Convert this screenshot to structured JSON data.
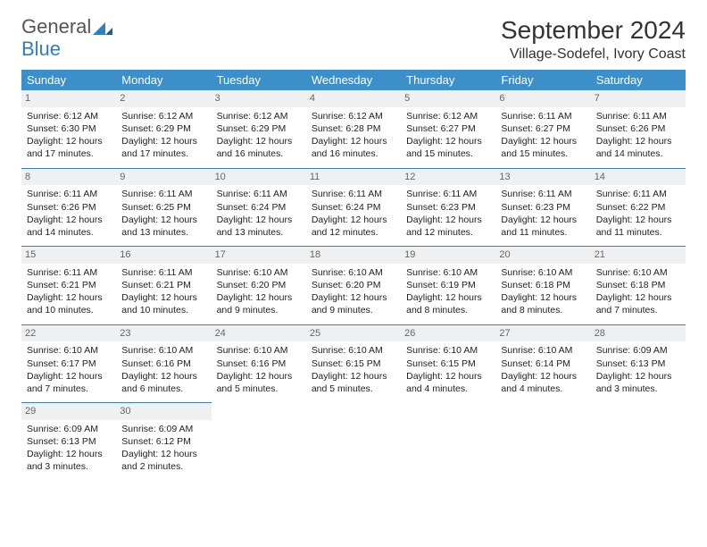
{
  "logo": {
    "line1": "General",
    "line2": "Blue"
  },
  "monthYear": "September 2024",
  "location": "Village-Sodefel, Ivory Coast",
  "colors": {
    "headerBg": "#3d8fc9",
    "headerText": "#ffffff",
    "rowDivider": "#3d7fa8",
    "dayNumBg": "#eef0f2",
    "dayNumText": "#666666",
    "bodyText": "#222222",
    "logoGray": "#555555",
    "logoBlue": "#2d7fc1"
  },
  "dayHeaders": [
    "Sunday",
    "Monday",
    "Tuesday",
    "Wednesday",
    "Thursday",
    "Friday",
    "Saturday"
  ],
  "weeks": [
    [
      {
        "n": "1",
        "sr": "Sunrise: 6:12 AM",
        "ss": "Sunset: 6:30 PM",
        "d1": "Daylight: 12 hours",
        "d2": "and 17 minutes."
      },
      {
        "n": "2",
        "sr": "Sunrise: 6:12 AM",
        "ss": "Sunset: 6:29 PM",
        "d1": "Daylight: 12 hours",
        "d2": "and 17 minutes."
      },
      {
        "n": "3",
        "sr": "Sunrise: 6:12 AM",
        "ss": "Sunset: 6:29 PM",
        "d1": "Daylight: 12 hours",
        "d2": "and 16 minutes."
      },
      {
        "n": "4",
        "sr": "Sunrise: 6:12 AM",
        "ss": "Sunset: 6:28 PM",
        "d1": "Daylight: 12 hours",
        "d2": "and 16 minutes."
      },
      {
        "n": "5",
        "sr": "Sunrise: 6:12 AM",
        "ss": "Sunset: 6:27 PM",
        "d1": "Daylight: 12 hours",
        "d2": "and 15 minutes."
      },
      {
        "n": "6",
        "sr": "Sunrise: 6:11 AM",
        "ss": "Sunset: 6:27 PM",
        "d1": "Daylight: 12 hours",
        "d2": "and 15 minutes."
      },
      {
        "n": "7",
        "sr": "Sunrise: 6:11 AM",
        "ss": "Sunset: 6:26 PM",
        "d1": "Daylight: 12 hours",
        "d2": "and 14 minutes."
      }
    ],
    [
      {
        "n": "8",
        "sr": "Sunrise: 6:11 AM",
        "ss": "Sunset: 6:26 PM",
        "d1": "Daylight: 12 hours",
        "d2": "and 14 minutes."
      },
      {
        "n": "9",
        "sr": "Sunrise: 6:11 AM",
        "ss": "Sunset: 6:25 PM",
        "d1": "Daylight: 12 hours",
        "d2": "and 13 minutes."
      },
      {
        "n": "10",
        "sr": "Sunrise: 6:11 AM",
        "ss": "Sunset: 6:24 PM",
        "d1": "Daylight: 12 hours",
        "d2": "and 13 minutes."
      },
      {
        "n": "11",
        "sr": "Sunrise: 6:11 AM",
        "ss": "Sunset: 6:24 PM",
        "d1": "Daylight: 12 hours",
        "d2": "and 12 minutes."
      },
      {
        "n": "12",
        "sr": "Sunrise: 6:11 AM",
        "ss": "Sunset: 6:23 PM",
        "d1": "Daylight: 12 hours",
        "d2": "and 12 minutes."
      },
      {
        "n": "13",
        "sr": "Sunrise: 6:11 AM",
        "ss": "Sunset: 6:23 PM",
        "d1": "Daylight: 12 hours",
        "d2": "and 11 minutes."
      },
      {
        "n": "14",
        "sr": "Sunrise: 6:11 AM",
        "ss": "Sunset: 6:22 PM",
        "d1": "Daylight: 12 hours",
        "d2": "and 11 minutes."
      }
    ],
    [
      {
        "n": "15",
        "sr": "Sunrise: 6:11 AM",
        "ss": "Sunset: 6:21 PM",
        "d1": "Daylight: 12 hours",
        "d2": "and 10 minutes."
      },
      {
        "n": "16",
        "sr": "Sunrise: 6:11 AM",
        "ss": "Sunset: 6:21 PM",
        "d1": "Daylight: 12 hours",
        "d2": "and 10 minutes."
      },
      {
        "n": "17",
        "sr": "Sunrise: 6:10 AM",
        "ss": "Sunset: 6:20 PM",
        "d1": "Daylight: 12 hours",
        "d2": "and 9 minutes."
      },
      {
        "n": "18",
        "sr": "Sunrise: 6:10 AM",
        "ss": "Sunset: 6:20 PM",
        "d1": "Daylight: 12 hours",
        "d2": "and 9 minutes."
      },
      {
        "n": "19",
        "sr": "Sunrise: 6:10 AM",
        "ss": "Sunset: 6:19 PM",
        "d1": "Daylight: 12 hours",
        "d2": "and 8 minutes."
      },
      {
        "n": "20",
        "sr": "Sunrise: 6:10 AM",
        "ss": "Sunset: 6:18 PM",
        "d1": "Daylight: 12 hours",
        "d2": "and 8 minutes."
      },
      {
        "n": "21",
        "sr": "Sunrise: 6:10 AM",
        "ss": "Sunset: 6:18 PM",
        "d1": "Daylight: 12 hours",
        "d2": "and 7 minutes."
      }
    ],
    [
      {
        "n": "22",
        "sr": "Sunrise: 6:10 AM",
        "ss": "Sunset: 6:17 PM",
        "d1": "Daylight: 12 hours",
        "d2": "and 7 minutes."
      },
      {
        "n": "23",
        "sr": "Sunrise: 6:10 AM",
        "ss": "Sunset: 6:16 PM",
        "d1": "Daylight: 12 hours",
        "d2": "and 6 minutes."
      },
      {
        "n": "24",
        "sr": "Sunrise: 6:10 AM",
        "ss": "Sunset: 6:16 PM",
        "d1": "Daylight: 12 hours",
        "d2": "and 5 minutes."
      },
      {
        "n": "25",
        "sr": "Sunrise: 6:10 AM",
        "ss": "Sunset: 6:15 PM",
        "d1": "Daylight: 12 hours",
        "d2": "and 5 minutes."
      },
      {
        "n": "26",
        "sr": "Sunrise: 6:10 AM",
        "ss": "Sunset: 6:15 PM",
        "d1": "Daylight: 12 hours",
        "d2": "and 4 minutes."
      },
      {
        "n": "27",
        "sr": "Sunrise: 6:10 AM",
        "ss": "Sunset: 6:14 PM",
        "d1": "Daylight: 12 hours",
        "d2": "and 4 minutes."
      },
      {
        "n": "28",
        "sr": "Sunrise: 6:09 AM",
        "ss": "Sunset: 6:13 PM",
        "d1": "Daylight: 12 hours",
        "d2": "and 3 minutes."
      }
    ],
    [
      {
        "n": "29",
        "sr": "Sunrise: 6:09 AM",
        "ss": "Sunset: 6:13 PM",
        "d1": "Daylight: 12 hours",
        "d2": "and 3 minutes."
      },
      {
        "n": "30",
        "sr": "Sunrise: 6:09 AM",
        "ss": "Sunset: 6:12 PM",
        "d1": "Daylight: 12 hours",
        "d2": "and 2 minutes."
      },
      null,
      null,
      null,
      null,
      null
    ]
  ]
}
